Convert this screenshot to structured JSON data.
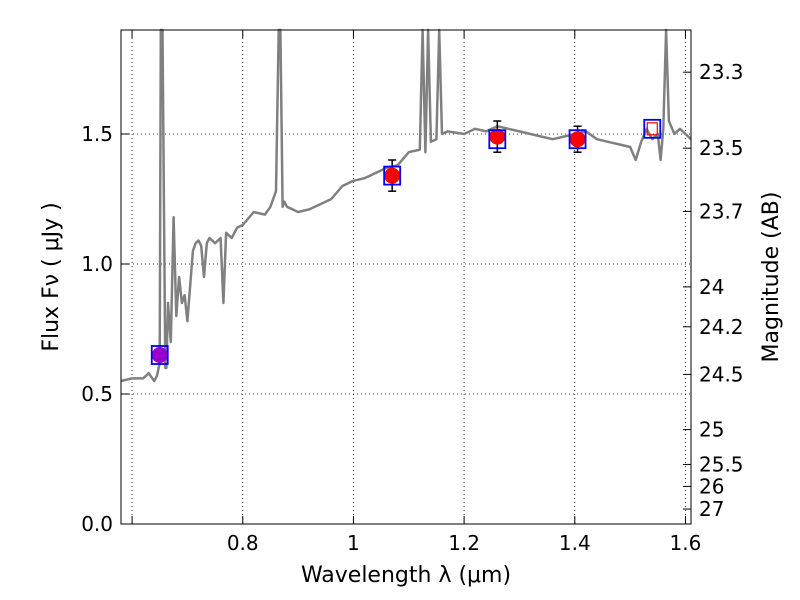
{
  "chart_data": {
    "type": "scatter",
    "xlabel": "Wavelength  λ (μm)",
    "ylabel": "Flux  Fν  ( μJy )",
    "ylabel_right": "Magnitude (AB)",
    "xlim": [
      0.58,
      1.61
    ],
    "ylim": [
      0.0,
      1.9
    ],
    "grid": true,
    "x_ticks": [
      {
        "v": 0.6,
        "label": ""
      },
      {
        "v": 0.8,
        "label": "0.8"
      },
      {
        "v": 1.0,
        "label": "1"
      },
      {
        "v": 1.2,
        "label": "1.2"
      },
      {
        "v": 1.4,
        "label": "1.4"
      },
      {
        "v": 1.6,
        "label": "1.6"
      }
    ],
    "y_ticks": [
      {
        "v": 0.0,
        "label": "0.0"
      },
      {
        "v": 0.5,
        "label": "0.5"
      },
      {
        "v": 1.0,
        "label": "1.0"
      },
      {
        "v": 1.5,
        "label": "1.5"
      }
    ],
    "mag_ticks": [
      {
        "mag": 23.3,
        "label": "23.3"
      },
      {
        "mag": 23.5,
        "label": "23.5"
      },
      {
        "mag": 23.7,
        "label": "23.7"
      },
      {
        "mag": 24.0,
        "label": "24"
      },
      {
        "mag": 24.2,
        "label": "24.2"
      },
      {
        "mag": 24.5,
        "label": "24.5"
      },
      {
        "mag": 25.0,
        "label": "25"
      },
      {
        "mag": 25.5,
        "label": "25.5"
      },
      {
        "mag": 26.0,
        "label": "26"
      },
      {
        "mag": 27.0,
        "label": "27"
      }
    ],
    "model_spectrum": {
      "color": "#808080",
      "x": [
        0.58,
        0.6,
        0.62,
        0.63,
        0.64,
        0.645,
        0.65,
        0.652,
        0.655,
        0.66,
        0.662,
        0.665,
        0.67,
        0.675,
        0.68,
        0.685,
        0.69,
        0.695,
        0.7,
        0.71,
        0.715,
        0.72,
        0.725,
        0.73,
        0.735,
        0.74,
        0.75,
        0.76,
        0.765,
        0.77,
        0.78,
        0.79,
        0.8,
        0.82,
        0.84,
        0.85,
        0.86,
        0.865,
        0.868,
        0.872,
        0.875,
        0.88,
        0.9,
        0.92,
        0.94,
        0.96,
        0.98,
        1.0,
        1.02,
        1.04,
        1.06,
        1.08,
        1.1,
        1.12,
        1.125,
        1.13,
        1.135,
        1.14,
        1.15,
        1.155,
        1.16,
        1.17,
        1.2,
        1.22,
        1.24,
        1.26,
        1.28,
        1.3,
        1.32,
        1.34,
        1.36,
        1.38,
        1.4,
        1.42,
        1.44,
        1.46,
        1.48,
        1.5,
        1.51,
        1.52,
        1.53,
        1.54,
        1.55,
        1.555,
        1.56,
        1.565,
        1.57,
        1.58,
        1.59,
        1.6,
        1.61
      ],
      "y": [
        0.55,
        0.56,
        0.56,
        0.58,
        0.55,
        0.57,
        0.62,
        1.9,
        1.9,
        0.6,
        0.6,
        0.85,
        0.7,
        1.18,
        0.8,
        0.95,
        0.85,
        0.88,
        0.78,
        1.05,
        1.08,
        1.09,
        1.07,
        0.95,
        1.08,
        1.1,
        1.08,
        1.1,
        0.85,
        1.12,
        1.1,
        1.14,
        1.15,
        1.2,
        1.19,
        1.22,
        1.28,
        1.9,
        1.9,
        1.22,
        1.24,
        1.22,
        1.2,
        1.21,
        1.23,
        1.25,
        1.3,
        1.32,
        1.33,
        1.35,
        1.37,
        1.38,
        1.43,
        1.44,
        1.9,
        1.43,
        1.9,
        1.47,
        1.48,
        1.9,
        1.5,
        1.51,
        1.5,
        1.52,
        1.51,
        1.53,
        1.52,
        1.51,
        1.5,
        1.49,
        1.48,
        1.49,
        1.5,
        1.51,
        1.48,
        1.47,
        1.46,
        1.45,
        1.4,
        1.47,
        1.52,
        1.48,
        1.5,
        1.4,
        1.52,
        1.9,
        1.55,
        1.5,
        1.52,
        1.5,
        1.48
      ]
    },
    "observed": {
      "marker": "circle",
      "color": "#ff0000",
      "points": [
        {
          "x": 0.65,
          "y": 0.65,
          "err": 0.02,
          "color": "#9900cc"
        },
        {
          "x": 1.07,
          "y": 1.34,
          "err": 0.06,
          "color": "#ff0000"
        },
        {
          "x": 1.26,
          "y": 1.49,
          "err": 0.06,
          "color": "#ff0000"
        },
        {
          "x": 1.405,
          "y": 1.48,
          "err": 0.05,
          "color": "#ff0000"
        }
      ]
    },
    "model_photometry": {
      "marker": "square",
      "color": "#0000ff",
      "points": [
        {
          "x": 0.65,
          "y": 0.65
        },
        {
          "x": 1.07,
          "y": 1.34
        },
        {
          "x": 1.26,
          "y": 1.48
        },
        {
          "x": 1.405,
          "y": 1.48
        },
        {
          "x": 1.54,
          "y": 1.52
        }
      ]
    },
    "upper_limit_box": {
      "x": 1.54,
      "y": 1.52,
      "color": "#ff0000"
    }
  }
}
